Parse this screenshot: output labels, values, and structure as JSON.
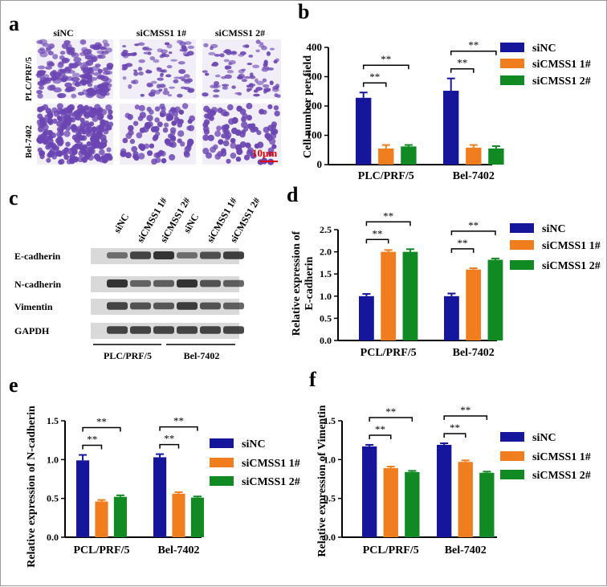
{
  "colors": {
    "siNC": "#16169c",
    "siCMSS1_1": "#f07d1e",
    "siCMSS1_2": "#118a23",
    "axis": "#000000",
    "scale_bar": "#e00000",
    "micro_bg": "#f1eef7",
    "micro_cell": "#6b45b2",
    "band": "#2a2a2a",
    "bg": "#ffffff"
  },
  "panel_a": {
    "letter": "a",
    "columns": [
      "siNC",
      "siCMSS1 1#",
      "siCMSS1 2#"
    ],
    "rows": [
      "PLC/PRF/5",
      "Bel-7402"
    ],
    "scale_label": "10μm"
  },
  "panel_c": {
    "letter": "c",
    "lanes": [
      "siNC",
      "siCMSS1 1#",
      "siCMSS1 2#",
      "siNC",
      "siCMSS1 1#",
      "siCMSS1 2#"
    ],
    "proteins": [
      "E-cadherin",
      "N-cadherin",
      "Vimentin",
      "GAPDH"
    ],
    "groups": [
      "PLC/PRF/5",
      "Bel-7402"
    ],
    "band_intensity": [
      [
        0.45,
        0.85,
        1.0,
        0.45,
        0.75,
        0.9
      ],
      [
        1.0,
        0.55,
        0.6,
        1.0,
        0.7,
        0.6
      ],
      [
        0.85,
        0.7,
        0.65,
        0.9,
        0.7,
        0.6
      ],
      [
        0.85,
        0.85,
        0.85,
        0.85,
        0.85,
        0.85
      ]
    ]
  },
  "chart_data": [
    {
      "panel": "b",
      "type": "bar",
      "ylabel": "Cell number per field",
      "categories": [
        "PLC/PRF/5",
        "Bel-7402"
      ],
      "ylim": [
        0,
        400
      ],
      "yticks": [
        0,
        100,
        200,
        300,
        400
      ],
      "series": [
        {
          "name": "siNC",
          "values": [
            228,
            252
          ],
          "errors": [
            18,
            42
          ]
        },
        {
          "name": "siCMSS1 1#",
          "values": [
            55,
            58
          ],
          "errors": [
            12,
            9
          ]
        },
        {
          "name": "siCMSS1 2#",
          "values": [
            62,
            55
          ],
          "errors": [
            5,
            8
          ]
        }
      ],
      "significance": "**"
    },
    {
      "panel": "d",
      "type": "bar",
      "ylabel": "Relative expression of\nE-cadherin",
      "categories": [
        "PCL/PRF/5",
        "Bel-7402"
      ],
      "ylim": [
        0,
        2.5
      ],
      "yticks": [
        "0.0",
        "0.5",
        "1.0",
        "1.5",
        "2.0",
        "2.5"
      ],
      "series": [
        {
          "name": "siNC",
          "values": [
            1.0,
            1.0
          ],
          "errors": [
            0.05,
            0.06
          ]
        },
        {
          "name": "siCMSS1 1#",
          "values": [
            2.0,
            1.6
          ],
          "errors": [
            0.04,
            0.03
          ]
        },
        {
          "name": "siCMSS1 2#",
          "values": [
            2.0,
            1.82
          ],
          "errors": [
            0.06,
            0.03
          ]
        }
      ],
      "significance": "**"
    },
    {
      "panel": "e",
      "type": "bar",
      "ylabel": "Relative expression of N-cadherin",
      "categories": [
        "PCL/PRF/5",
        "Bel-7402"
      ],
      "ylim": [
        0,
        1.5
      ],
      "yticks": [
        "0.0",
        "0.5",
        "1.0",
        "1.5"
      ],
      "series": [
        {
          "name": "siNC",
          "values": [
            0.99,
            1.03
          ],
          "errors": [
            0.07,
            0.04
          ]
        },
        {
          "name": "siCMSS1 1#",
          "values": [
            0.46,
            0.56
          ],
          "errors": [
            0.02,
            0.02
          ]
        },
        {
          "name": "siCMSS1 2#",
          "values": [
            0.52,
            0.51
          ],
          "errors": [
            0.02,
            0.015
          ]
        }
      ],
      "significance": "**"
    },
    {
      "panel": "f",
      "type": "bar",
      "ylabel": "Relative expression of Vimentin",
      "categories": [
        "PCL/PRF/5",
        "Bel-7402"
      ],
      "ylim": [
        0,
        1.5
      ],
      "yticks": [
        "0.0",
        "0.5",
        "1.0",
        "1.5"
      ],
      "series": [
        {
          "name": "siNC",
          "values": [
            1.17,
            1.19
          ],
          "errors": [
            0.02,
            0.02
          ]
        },
        {
          "name": "siCMSS1 1#",
          "values": [
            0.89,
            0.97
          ],
          "errors": [
            0.02,
            0.02
          ]
        },
        {
          "name": "siCMSS1 2#",
          "values": [
            0.84,
            0.83
          ],
          "errors": [
            0.015,
            0.015
          ]
        }
      ],
      "significance": "**"
    }
  ]
}
